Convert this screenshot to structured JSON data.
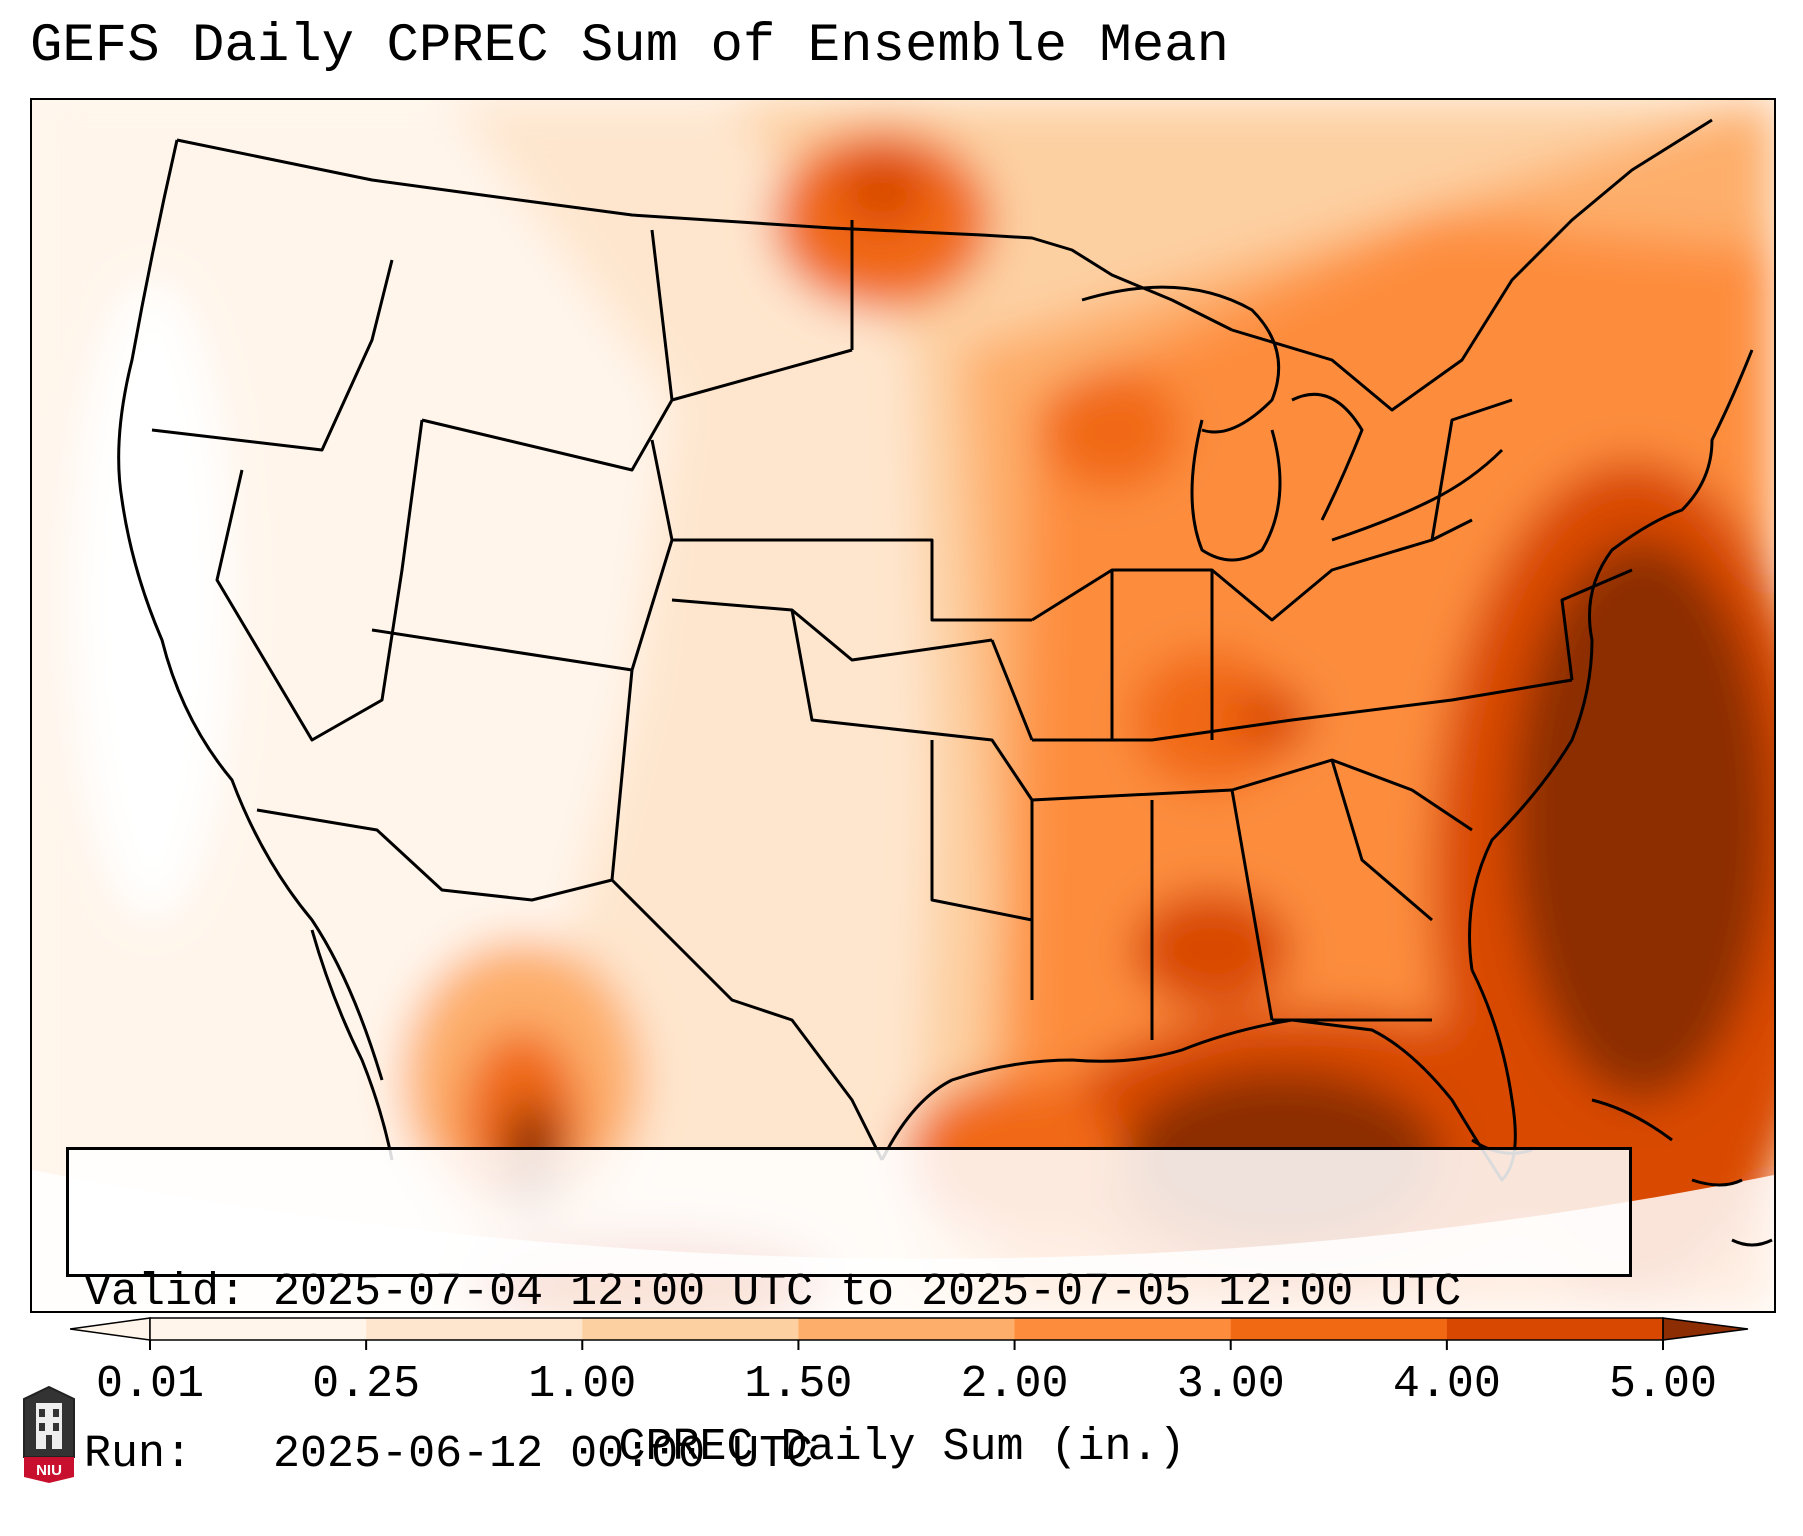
{
  "title": "GEFS Daily CPREC Sum of Ensemble Mean",
  "info": {
    "valid_label": "Valid:",
    "valid_value": "2025-07-04 12:00 UTC to 2025-07-05 12:00 UTC",
    "run_label": "Run:",
    "run_value": "2025-06-12 00:00 UTC"
  },
  "colorbar": {
    "label": "CPREC Daily Sum (in.)",
    "ticks": [
      "0.01",
      "0.25",
      "1.00",
      "1.50",
      "2.00",
      "3.00",
      "4.00",
      "5.00"
    ],
    "colors": [
      "#fff5eb",
      "#fee6ce",
      "#fdd0a2",
      "#fdae6b",
      "#fd8d3c",
      "#f16913",
      "#d94801",
      "#8c2d04"
    ],
    "extend": "both"
  },
  "logo": {
    "text": "NIU",
    "icon": "university-tower-icon"
  },
  "map": {
    "region": "Continental United States",
    "boundaries": "state and country borders"
  }
}
